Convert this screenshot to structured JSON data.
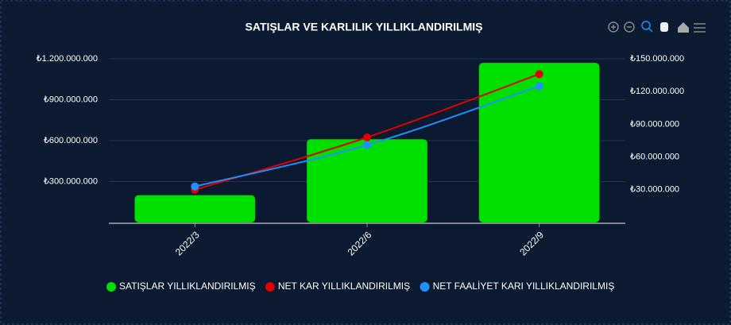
{
  "chart_data": {
    "type": "bar-line",
    "title": "SATIŞLAR VE KARLILIK YILLIKLANDIRILMIŞ",
    "categories": [
      "2022/3",
      "2022/6",
      "2022/9"
    ],
    "series": [
      {
        "name": "SATIŞLAR YILLIKLANDIRILMIŞ",
        "type": "bar",
        "color": "#00e000",
        "values": [
          200000000,
          610000000,
          1170000000
        ]
      },
      {
        "name": "NET KAR YILLIKLANDIRILMIŞ",
        "type": "line",
        "axis": "y2",
        "color": "#e00000",
        "values": [
          30000000,
          78000000,
          136000000
        ]
      },
      {
        "name": "NET FAALİYET KARI YILLIKLANDIRILMIŞ",
        "type": "line",
        "axis": "y2",
        "color": "#1e90ff",
        "values": [
          33000000,
          71000000,
          125000000
        ]
      }
    ],
    "ylim": [
      0,
      1200000000
    ],
    "yticks": [
      {
        "value": 300000000,
        "label": "₺300.000.000"
      },
      {
        "value": 600000000,
        "label": "₺600.000.000"
      },
      {
        "value": 900000000,
        "label": "₺900.000.000"
      },
      {
        "value": 1200000000,
        "label": "₺1.200.000.000"
      }
    ],
    "y2lim": [
      0,
      150000000
    ],
    "y2ticks": [
      {
        "value": 30000000,
        "label": "₺30.000.000"
      },
      {
        "value": 60000000,
        "label": "₺60.000.000"
      },
      {
        "value": 90000000,
        "label": "₺90.000.000"
      },
      {
        "value": 120000000,
        "label": "₺120.000.000"
      },
      {
        "value": 150000000,
        "label": "₺150.000.000"
      }
    ],
    "grid": true
  }
}
